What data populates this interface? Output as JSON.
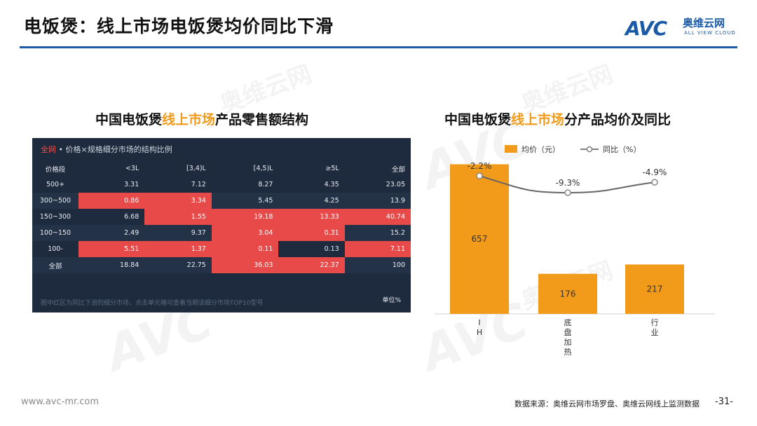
{
  "header": {
    "title": "电饭煲：线上市场电饭煲均价同比下滑",
    "logo_text": "AVC",
    "logo_cn": "奥维云网",
    "logo_en": "ALL VIEW CLOUD"
  },
  "left": {
    "title_pre": "中国电饭煲",
    "title_hl": "线上市场",
    "title_post": "产品零售额结构",
    "panel_head_hl": "全网",
    "panel_head": " • 价格×规格细分市场的结构比例",
    "table": {
      "columns": [
        "价格段",
        "<3L",
        "[3,4)L",
        "[4,5)L",
        "≥5L",
        "全部"
      ],
      "rows": [
        {
          "label": "500+",
          "cells": [
            "3.31",
            "7.12",
            "8.27",
            "4.35",
            "23.05"
          ],
          "hi": [
            false,
            false,
            false,
            false,
            false
          ]
        },
        {
          "label": "300~500",
          "cells": [
            "0.86",
            "3.34",
            "5.45",
            "4.25",
            "13.9"
          ],
          "hi": [
            true,
            true,
            false,
            false,
            false
          ]
        },
        {
          "label": "150~300",
          "cells": [
            "6.68",
            "1.55",
            "19.18",
            "13.33",
            "40.74"
          ],
          "hi": [
            false,
            true,
            true,
            true,
            true
          ]
        },
        {
          "label": "100~150",
          "cells": [
            "2.49",
            "9.37",
            "3.04",
            "0.31",
            "15.2"
          ],
          "hi": [
            false,
            false,
            true,
            true,
            false
          ]
        },
        {
          "label": "100-",
          "cells": [
            "5.51",
            "1.37",
            "0.11",
            "0.13",
            "7.11"
          ],
          "hi": [
            true,
            true,
            true,
            false,
            true
          ]
        },
        {
          "label": "全部",
          "cells": [
            "18.84",
            "22.75",
            "36.03",
            "22.37",
            "100"
          ],
          "hi": [
            false,
            false,
            true,
            true,
            false
          ]
        }
      ]
    },
    "panel_foot": "图中红区为同比下滑的细分市场，点击单元格可查看当期该细分市场TOP10型号",
    "unit": "单位%"
  },
  "right": {
    "title_pre": "中国电饭煲",
    "title_hl": "线上市场",
    "title_post": "分产品均价及同比"
  },
  "chart_data": {
    "type": "bar",
    "categories": [
      "IH",
      "底盘加热",
      "行业"
    ],
    "series": [
      {
        "name": "均价（元）",
        "type": "bar",
        "values": [
          657,
          176,
          217
        ],
        "color": "#f29a1a"
      },
      {
        "name": "同比（%）",
        "type": "line",
        "values": [
          -2.2,
          -9.3,
          -4.9
        ],
        "labels": [
          "-2.2%",
          "-9.3%",
          "-4.9%"
        ],
        "color": "#7f7f7f"
      }
    ],
    "legend": "top",
    "ylim": [
      0,
      800
    ]
  },
  "footer": {
    "website": "www.avc-mr.com",
    "source": "数据来源：奥维云网市场罗盘、奥维云网线上监测数据",
    "page": "-31-"
  }
}
